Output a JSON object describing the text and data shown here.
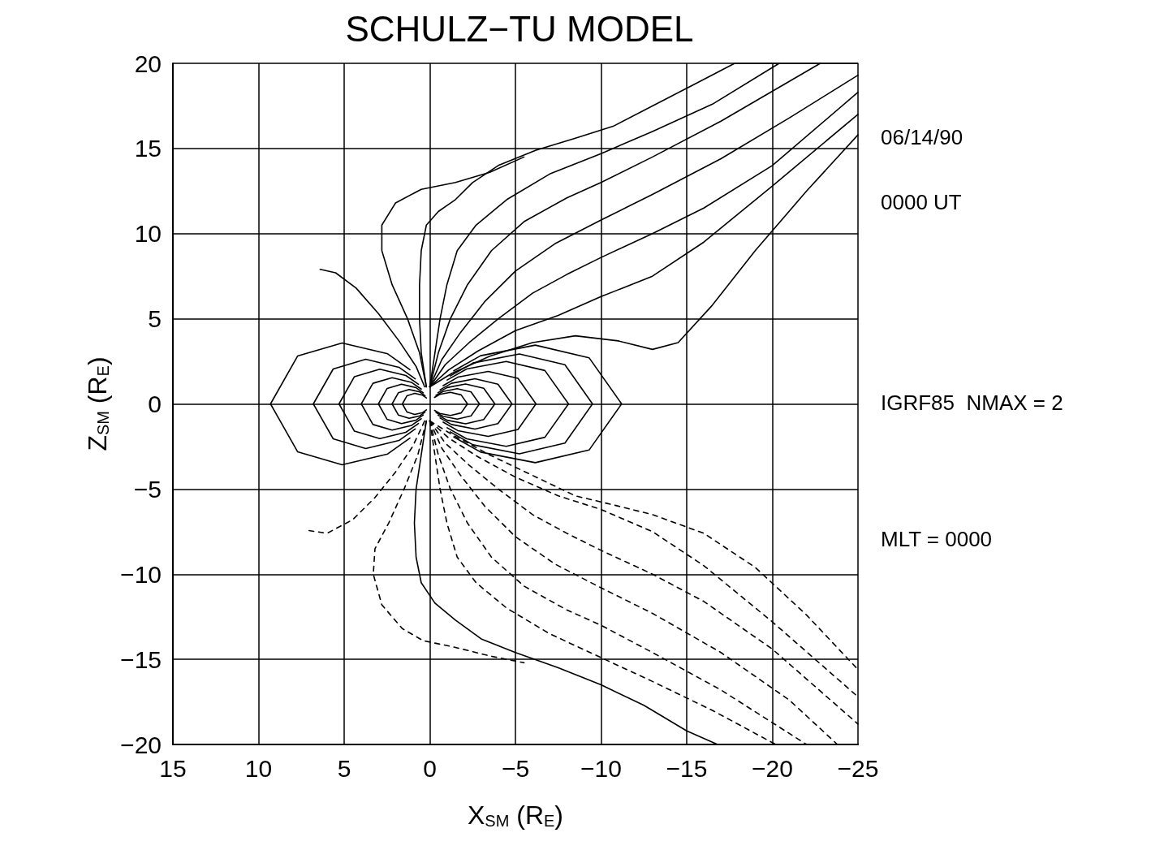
{
  "chart_data": {
    "type": "line",
    "title": "SCHULZ−TU MODEL",
    "xlabel": "X$_{SM}$ (R$_{E}$)",
    "ylabel": "Z$_{SM}$ (R$_{E}$)",
    "annotations": [
      "06/14/90",
      "0000 UT",
      "IGRF85  NMAX = 2",
      "MLT = 0000"
    ],
    "xlim": [
      15,
      -25
    ],
    "xticks": [
      15,
      10,
      5,
      0,
      -5,
      -10,
      -15,
      -20,
      -25
    ],
    "ylim": [
      -20,
      20
    ],
    "yticks": [
      -20,
      -15,
      -10,
      -5,
      0,
      5,
      10,
      15,
      20
    ],
    "grid": true,
    "marker": "none",
    "series": [
      {
        "color": "#000000",
        "line_style": "solid",
        "x": [
          0.2,
          0.42,
          0.88,
          1.33,
          1.6,
          1.33,
          0.88,
          0.42,
          0.2
        ],
        "values": [
          0.35,
          0.51,
          0.62,
          0.48,
          0,
          -0.48,
          -0.62,
          -0.51,
          -0.35
        ]
      },
      {
        "color": "#000000",
        "line_style": "solid",
        "x": [
          0.28,
          0.58,
          1.21,
          1.83,
          2.2,
          1.83,
          1.21,
          0.58,
          0.28
        ],
        "values": [
          0.48,
          0.7,
          0.85,
          0.66,
          0,
          -0.66,
          -0.85,
          -0.7,
          -0.48
        ]
      },
      {
        "color": "#000000",
        "line_style": "solid",
        "x": [
          0.38,
          0.8,
          1.65,
          2.49,
          3,
          2.49,
          1.65,
          0.8,
          0.38
        ],
        "values": [
          0.65,
          0.95,
          1.16,
          0.91,
          0,
          -0.91,
          -1.16,
          -0.95,
          -0.65
        ]
      },
      {
        "color": "#000000",
        "line_style": "solid",
        "x": [
          0.5,
          1.06,
          2.2,
          3.32,
          4,
          3.32,
          2.2,
          1.06,
          0.5
        ],
        "values": [
          0.87,
          1.26,
          1.54,
          1.21,
          0,
          -1.21,
          -1.54,
          -1.26,
          -0.87
        ]
      },
      {
        "color": "#000000",
        "line_style": "solid",
        "x": [
          0.66,
          1.4,
          2.92,
          4.4,
          5.3,
          4.4,
          2.92,
          1.4,
          0.66
        ],
        "values": [
          1.15,
          1.67,
          2.04,
          1.6,
          0,
          -1.6,
          -2.04,
          -1.67,
          -1.15
        ]
      },
      {
        "color": "#000000",
        "line_style": "solid",
        "x": [
          0.85,
          1.8,
          3.74,
          5.64,
          6.8,
          5.64,
          3.74,
          1.8,
          0.85
        ],
        "values": [
          1.47,
          2.15,
          2.62,
          2.05,
          0,
          -2.05,
          -2.62,
          -2.15,
          -1.47
        ]
      },
      {
        "color": "#000000",
        "line_style": "solid",
        "x": [
          1.16,
          2.46,
          5.12,
          7.72,
          9.3,
          7.72,
          5.12,
          2.46,
          1.16
        ],
        "values": [
          2.01,
          2.94,
          3.58,
          2.81,
          0,
          -2.81,
          -3.58,
          -2.94,
          -2.01
        ]
      },
      {
        "color": "#000000",
        "line_style": "solid",
        "x": [
          -0.28,
          -0.58,
          -1.21,
          -1.83,
          -2.2,
          -1.83,
          -1.21,
          -0.58,
          -0.28
        ],
        "values": [
          0.38,
          0.56,
          0.68,
          0.53,
          0,
          -0.53,
          -0.68,
          -0.56,
          -0.38
        ]
      },
      {
        "color": "#000000",
        "line_style": "solid",
        "x": [
          -0.36,
          -0.77,
          -1.6,
          -2.41,
          -2.9,
          -2.41,
          -1.6,
          -0.77,
          -0.36
        ],
        "values": [
          0.5,
          0.73,
          0.89,
          0.7,
          0,
          -0.7,
          -0.89,
          -0.73,
          -0.5
        ]
      },
      {
        "color": "#000000",
        "line_style": "solid",
        "x": [
          -0.48,
          -1.01,
          -2.09,
          -3.15,
          -3.8,
          -3.15,
          -2.09,
          -1.01,
          -0.48
        ],
        "values": [
          0.66,
          0.96,
          1.17,
          0.92,
          0,
          -0.92,
          -1.17,
          -0.96,
          -0.66
        ]
      },
      {
        "color": "#000000",
        "line_style": "solid",
        "x": [
          -0.6,
          -1.27,
          -2.64,
          -3.98,
          -4.8,
          -3.98,
          -2.64,
          -1.27,
          -0.6
        ],
        "values": [
          0.83,
          1.21,
          1.48,
          1.16,
          0,
          -1.16,
          -1.48,
          -1.21,
          -0.83
        ]
      },
      {
        "color": "#000000",
        "line_style": "solid",
        "x": [
          -0.78,
          -1.64,
          -3.41,
          -5.15,
          -6.2,
          -5.15,
          -3.41,
          -1.64,
          -0.78
        ],
        "values": [
          1.07,
          1.57,
          1.91,
          1.5,
          0,
          -1.5,
          -1.91,
          -1.57,
          -1.07
        ]
      },
      {
        "color": "#000000",
        "line_style": "solid",
        "x": [
          -1.01,
          -2.15,
          -4.46,
          -6.72,
          -8.1,
          -6.72,
          -4.46,
          -2.15,
          -1.01
        ],
        "values": [
          1.4,
          2.05,
          2.49,
          1.96,
          0,
          -1.96,
          -2.49,
          -2.05,
          -1.4
        ]
      },
      {
        "color": "#000000",
        "line_style": "solid",
        "x": [
          -1.19,
          -2.52,
          -5.23,
          -7.89,
          -9.5,
          -7.89,
          -5.23,
          -2.52,
          -1.19
        ],
        "values": [
          1.64,
          2.4,
          2.93,
          2.3,
          0,
          -2.3,
          -2.93,
          -2.4,
          -1.64
        ]
      },
      {
        "color": "#000000",
        "line_style": "solid",
        "x": [
          -1.4,
          -2.97,
          -6.16,
          -9.3,
          -11.2,
          -9.3,
          -6.16,
          -2.97,
          -1.4
        ],
        "values": [
          1.94,
          2.83,
          3.45,
          2.71,
          0,
          -2.71,
          -3.45,
          -2.83,
          -1.94
        ]
      },
      {
        "color": "#000000",
        "line_style": "solid",
        "x": [
          0.3,
          0.8,
          1.8,
          3,
          4.3,
          5.5,
          6.4
        ],
        "values": [
          1,
          2.2,
          3.7,
          5.3,
          6.8,
          7.7,
          7.9
        ]
      },
      {
        "color": "#000000",
        "line_style": "solid",
        "x": [
          0.2,
          0.6,
          1.3,
          2.2,
          2.8,
          2.8,
          2,
          0.5,
          -1.5,
          -3.5,
          -5.5
        ],
        "values": [
          1,
          3,
          5,
          7,
          9,
          10.5,
          11.8,
          12.6,
          13,
          13.6,
          14.5
        ]
      },
      {
        "color": "#000000",
        "line_style": "solid",
        "x": [
          0.2,
          0.5,
          0.6,
          0.6,
          0.5,
          0.2,
          -0.5,
          -1.5,
          -2.5,
          -4,
          -6.2,
          -8.5,
          -10.7,
          -13,
          -15.5,
          -17.8,
          -25
        ],
        "values": [
          1,
          3,
          5,
          7,
          9,
          10.5,
          11.3,
          12,
          13,
          14,
          14.9,
          15.6,
          16.3,
          17.5,
          18.8,
          20,
          20
        ]
      },
      {
        "color": "#000000",
        "line_style": "solid",
        "x": [
          0,
          -0.3,
          -0.6,
          -1,
          -1.6,
          -2.7,
          -4.5,
          -7,
          -10,
          -13,
          -16.5,
          -20.4
        ],
        "values": [
          1,
          3,
          5,
          7,
          9,
          10.5,
          12,
          13.5,
          14.7,
          16,
          17.6,
          20
        ]
      },
      {
        "color": "#000000",
        "line_style": "solid",
        "x": [
          0,
          -0.5,
          -1.2,
          -2.2,
          -3.6,
          -5.5,
          -8,
          -10,
          -13,
          -17,
          -22.8
        ],
        "values": [
          1,
          3,
          5,
          7,
          9,
          10.7,
          12.1,
          13,
          14.5,
          16.6,
          20
        ]
      },
      {
        "color": "#000000",
        "line_style": "solid",
        "x": [
          0,
          -0.7,
          -1.8,
          -3.2,
          -5,
          -7.3,
          -10,
          -13,
          -17,
          -21,
          -25
        ],
        "values": [
          1,
          2.6,
          4.2,
          6,
          7.8,
          9.4,
          10.8,
          12.3,
          14.4,
          16.8,
          19.3
        ]
      },
      {
        "color": "#000000",
        "line_style": "solid",
        "x": [
          0,
          -0.9,
          -2.3,
          -4,
          -6,
          -8,
          -10,
          -13,
          -16,
          -20,
          -25
        ],
        "values": [
          1,
          2.3,
          3.6,
          5,
          6.5,
          7.6,
          8.6,
          10,
          11.5,
          14,
          18.3
        ]
      },
      {
        "color": "#000000",
        "line_style": "solid",
        "x": [
          0,
          -1.1,
          -2.8,
          -5,
          -7.5,
          -10,
          -13,
          -16,
          -20,
          -25
        ],
        "values": [
          1,
          2,
          3.1,
          4.3,
          5.2,
          6.3,
          7.5,
          9.5,
          12.8,
          17
        ]
      },
      {
        "color": "#000000",
        "line_style": "solid",
        "x": [
          0,
          -1.3,
          -3.5,
          -6,
          -8.5,
          -11,
          -13,
          -14.5,
          -16.5,
          -19,
          -22,
          -25
        ],
        "values": [
          1,
          1.8,
          2.8,
          3.6,
          4,
          3.7,
          3.2,
          3.6,
          5.8,
          9,
          12.5,
          15.8
        ]
      },
      {
        "color": "#000000",
        "line_style": "solid",
        "x": [
          0.2,
          0.5,
          0.8,
          0.9,
          0.8,
          0.5,
          -0.3,
          -1.5,
          -3,
          -5,
          -7.5,
          -10,
          -12.5,
          -15,
          -16.8,
          -25
        ],
        "values": [
          -1,
          -3,
          -5,
          -7,
          -9,
          -10.5,
          -11.7,
          -12.7,
          -13.8,
          -14.6,
          -15.5,
          -16.5,
          -17.7,
          -19.2,
          -20,
          -20
        ]
      },
      {
        "color": "#000000",
        "line_style": "dashed",
        "x": [
          0.3,
          1,
          2,
          3.2,
          4.5,
          6,
          7.3
        ],
        "values": [
          -1,
          -2.5,
          -4,
          -5.5,
          -6.8,
          -7.6,
          -7.4
        ]
      },
      {
        "color": "#000000",
        "line_style": "dashed",
        "x": [
          0.2,
          0.7,
          1.5,
          2.4,
          3.2,
          3.3,
          2.8,
          1.6,
          0.4,
          -1.5,
          -3.5,
          -5.5
        ],
        "values": [
          -1,
          -3,
          -5,
          -7,
          -8.5,
          -10,
          -11.8,
          -13.2,
          -13.9,
          -14.3,
          -14.8,
          -15.2
        ]
      },
      {
        "color": "#000000",
        "line_style": "dashed",
        "x": [
          0,
          -0.3,
          -0.6,
          -1,
          -1.6,
          -2.7,
          -4.5,
          -7,
          -10,
          -13,
          -16.5,
          -20.2
        ],
        "values": [
          -1,
          -3,
          -5,
          -7,
          -9,
          -10.5,
          -12,
          -13.5,
          -14.9,
          -16.3,
          -18,
          -20
        ]
      },
      {
        "color": "#000000",
        "line_style": "dashed",
        "x": [
          0,
          -0.5,
          -1.2,
          -2.2,
          -3.6,
          -5.5,
          -8,
          -10,
          -13,
          -17,
          -22
        ],
        "values": [
          -1,
          -3,
          -5,
          -7,
          -9,
          -10.7,
          -12.1,
          -13,
          -14.6,
          -16.8,
          -20
        ]
      },
      {
        "color": "#000000",
        "line_style": "dashed",
        "x": [
          0,
          -0.7,
          -1.8,
          -3.2,
          -5,
          -7.3,
          -10,
          -13,
          -17,
          -21,
          -23.8
        ],
        "values": [
          -1,
          -2.6,
          -4.2,
          -6,
          -7.8,
          -9.4,
          -10.8,
          -12.3,
          -14.6,
          -17.4,
          -20
        ]
      },
      {
        "color": "#000000",
        "line_style": "dashed",
        "x": [
          0,
          -0.9,
          -2.3,
          -4,
          -6,
          -8,
          -10,
          -13,
          -16,
          -20,
          -25
        ],
        "values": [
          -1,
          -2.3,
          -3.6,
          -5,
          -6.5,
          -7.6,
          -8.6,
          -10,
          -11.6,
          -14.4,
          -18.8
        ]
      },
      {
        "color": "#000000",
        "line_style": "dashed",
        "x": [
          0,
          -1.1,
          -2.8,
          -5,
          -7.5,
          -10,
          -13,
          -16,
          -20,
          -25
        ],
        "values": [
          -1,
          -2,
          -3.1,
          -4.3,
          -5.4,
          -6.2,
          -7.5,
          -9.5,
          -12.8,
          -17.2
        ]
      },
      {
        "color": "#000000",
        "line_style": "dashed",
        "x": [
          0,
          -1.3,
          -3.5,
          -6,
          -8.5,
          -11,
          -13,
          -16,
          -19,
          -22,
          -25
        ],
        "values": [
          -1,
          -1.8,
          -3,
          -4.2,
          -5.4,
          -6,
          -6.5,
          -7.6,
          -9.6,
          -12.4,
          -15.6
        ]
      }
    ]
  }
}
